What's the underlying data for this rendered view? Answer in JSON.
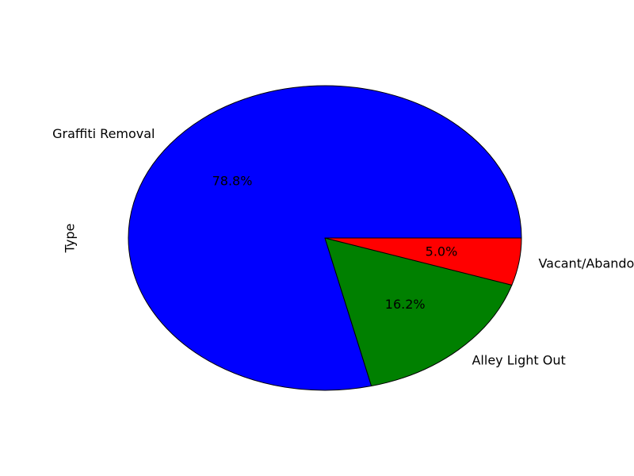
{
  "chart_data": {
    "type": "pie",
    "title": "",
    "ylabel": "Type",
    "categories": [
      "Graffiti Removal",
      "Alley Light Out",
      "Vacant/Abandoned Building"
    ],
    "values": [
      78.8,
      16.2,
      5.0
    ],
    "percent_labels": [
      "78.8%",
      "16.2%",
      "5.0%"
    ],
    "colors": [
      "#0000ff",
      "#008000",
      "#ff0000"
    ],
    "start_angle_deg": 0,
    "direction": "counterclockwise",
    "edge_color": "#000000"
  }
}
